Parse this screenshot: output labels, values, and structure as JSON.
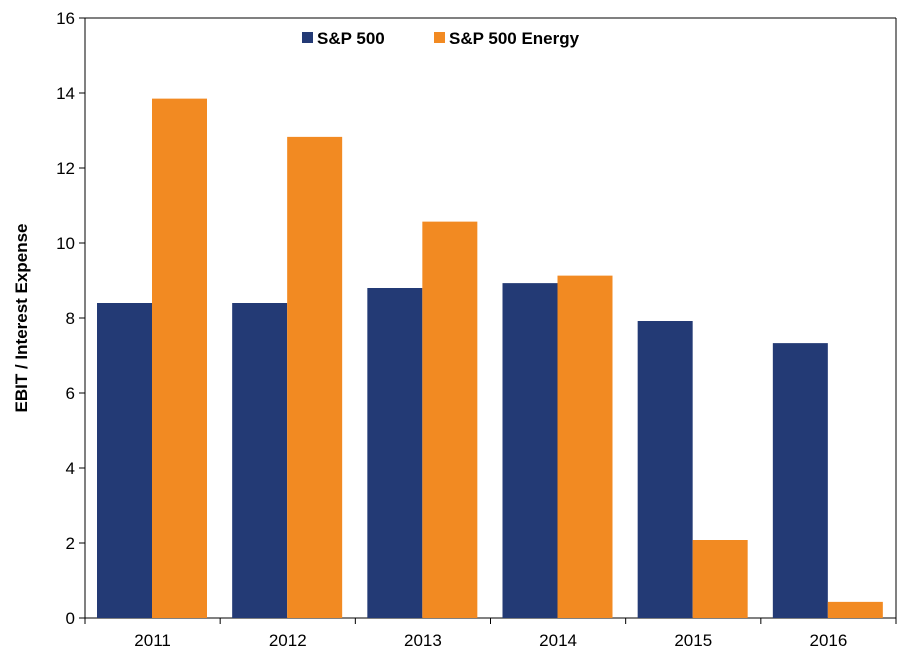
{
  "chart_data": {
    "type": "bar",
    "categories": [
      "2011",
      "2012",
      "2013",
      "2014",
      "2015",
      "2016"
    ],
    "series": [
      {
        "name": "S&P 500",
        "color": "#233a75",
        "values": [
          8.4,
          8.4,
          8.8,
          8.93,
          7.92,
          7.33
        ]
      },
      {
        "name": "S&P 500 Energy",
        "color": "#f28a22",
        "values": [
          13.85,
          12.83,
          10.57,
          9.13,
          2.08,
          0.43
        ]
      }
    ],
    "xlabel": "",
    "ylabel": "EBIT / Interest Expense",
    "ylim": [
      0,
      16
    ],
    "yticks": [
      0,
      2,
      4,
      6,
      8,
      10,
      12,
      14,
      16
    ],
    "legend": "top-center",
    "grid": false
  }
}
